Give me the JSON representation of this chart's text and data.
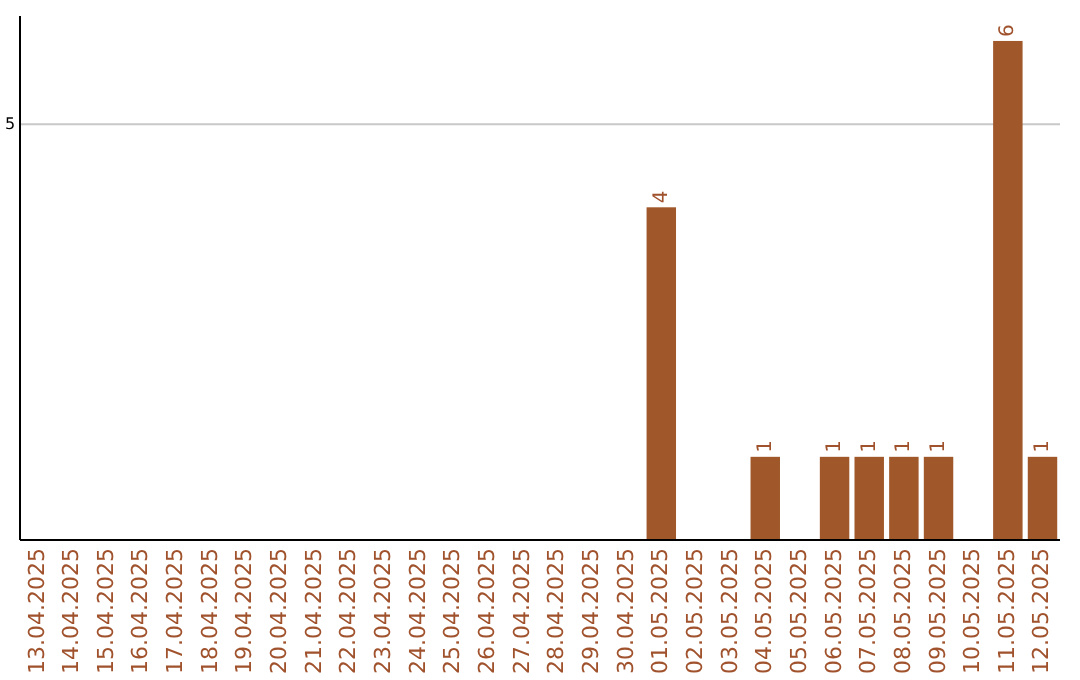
{
  "chart_data": {
    "type": "bar",
    "categories": [
      "13.04.2025",
      "14.04.2025",
      "15.04.2025",
      "16.04.2025",
      "17.04.2025",
      "18.04.2025",
      "19.04.2025",
      "20.04.2025",
      "21.04.2025",
      "22.04.2025",
      "23.04.2025",
      "24.04.2025",
      "25.04.2025",
      "26.04.2025",
      "27.04.2025",
      "28.04.2025",
      "29.04.2025",
      "30.04.2025",
      "01.05.2025",
      "02.05.2025",
      "03.05.2025",
      "04.05.2025",
      "05.05.2025",
      "06.05.2025",
      "07.05.2025",
      "08.05.2025",
      "09.05.2025",
      "10.05.2025",
      "11.05.2025",
      "12.05.2025"
    ],
    "values": [
      null,
      null,
      null,
      null,
      null,
      null,
      null,
      null,
      null,
      null,
      null,
      null,
      null,
      null,
      null,
      null,
      null,
      null,
      4,
      null,
      null,
      1,
      null,
      1,
      1,
      1,
      1,
      null,
      6,
      1
    ],
    "value_labels": [
      null,
      null,
      null,
      null,
      null,
      null,
      null,
      null,
      null,
      null,
      null,
      null,
      null,
      null,
      null,
      null,
      null,
      null,
      "4",
      null,
      null,
      "1",
      null,
      "1",
      "1",
      "1",
      "1",
      null,
      "6",
      "1"
    ],
    "color": "#a0582a",
    "ylim": [
      0,
      6.3
    ],
    "yticks": [
      5
    ],
    "grid": "y"
  }
}
